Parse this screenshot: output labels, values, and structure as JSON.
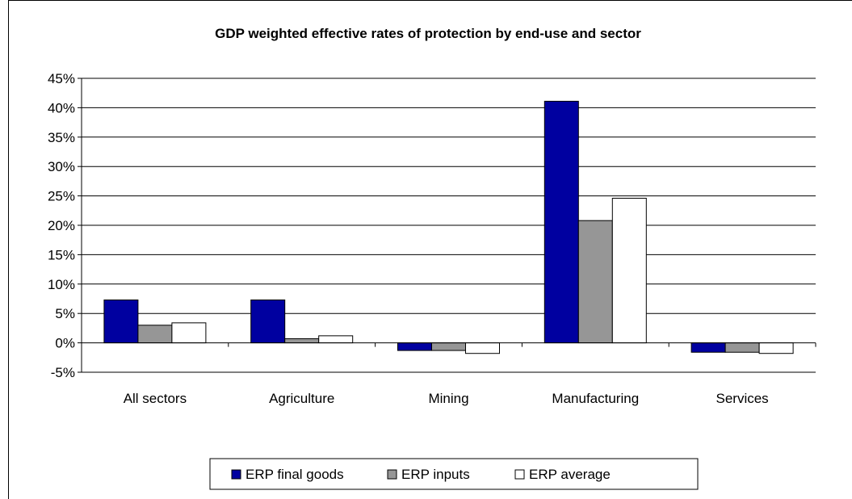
{
  "chart_data": {
    "type": "bar",
    "title": "GDP weighted effective rates of protection by end-use and sector",
    "xlabel": "",
    "ylabel": "",
    "categories": [
      "All sectors",
      "Agriculture",
      "Mining",
      "Manufacturing",
      "Services"
    ],
    "series": [
      {
        "name": "ERP final goods",
        "color": "#0000a0",
        "values": [
          7.3,
          7.3,
          -1.3,
          41.1,
          -1.6
        ]
      },
      {
        "name": "ERP inputs",
        "color": "#969696",
        "values": [
          3.0,
          0.7,
          -1.3,
          20.8,
          -1.6
        ]
      },
      {
        "name": "ERP average",
        "color": "#ffffff",
        "values": [
          3.4,
          1.2,
          -1.8,
          24.6,
          -1.8
        ]
      }
    ],
    "ylim": [
      -5,
      45
    ],
    "y_ticks": [
      "-5%",
      "0%",
      "5%",
      "10%",
      "15%",
      "20%",
      "25%",
      "30%",
      "35%",
      "40%",
      "45%"
    ],
    "grid": "horizontal",
    "legend": "bottom"
  }
}
